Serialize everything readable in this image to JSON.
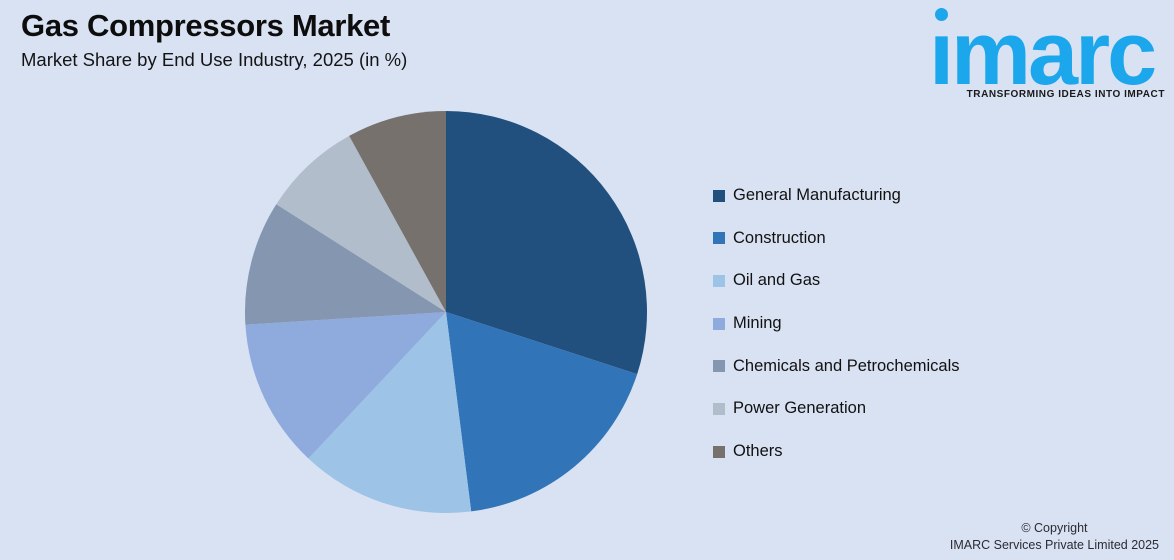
{
  "page": {
    "background": "#D9E2F3"
  },
  "header": {
    "title": "Gas Compressors Market",
    "subtitle": "Market Share by End Use Industry, 2025 (in %)"
  },
  "logo": {
    "text": "ımarc",
    "tagline": "TRANSFORMING IDEAS INTO IMPACT",
    "brand_color": "#1CA7EC",
    "dot_icon": "circle-dot"
  },
  "chart_data": {
    "type": "pie",
    "title": "Gas Compressors Market",
    "subtitle": "Market Share by End Use Industry, 2025 (in %)",
    "categories": [
      "General Manufacturing",
      "Construction",
      "Oil and Gas",
      "Mining",
      "Chemicals and Petrochemicals",
      "Power Generation",
      "Others"
    ],
    "values": [
      30,
      18,
      14,
      12,
      10,
      8,
      8
    ],
    "unit": "%",
    "colors": [
      "#214F7E",
      "#3174B8",
      "#9DC3E6",
      "#8FAADC",
      "#8496B0",
      "#B2BDCB",
      "#76716C"
    ],
    "start_angle_deg": 0,
    "direction": "clockwise",
    "legend_position": "right",
    "data_labels": false
  },
  "footer": {
    "copyright_line1": "© Copyright",
    "copyright_line2": "IMARC Services Private Limited 2025"
  }
}
